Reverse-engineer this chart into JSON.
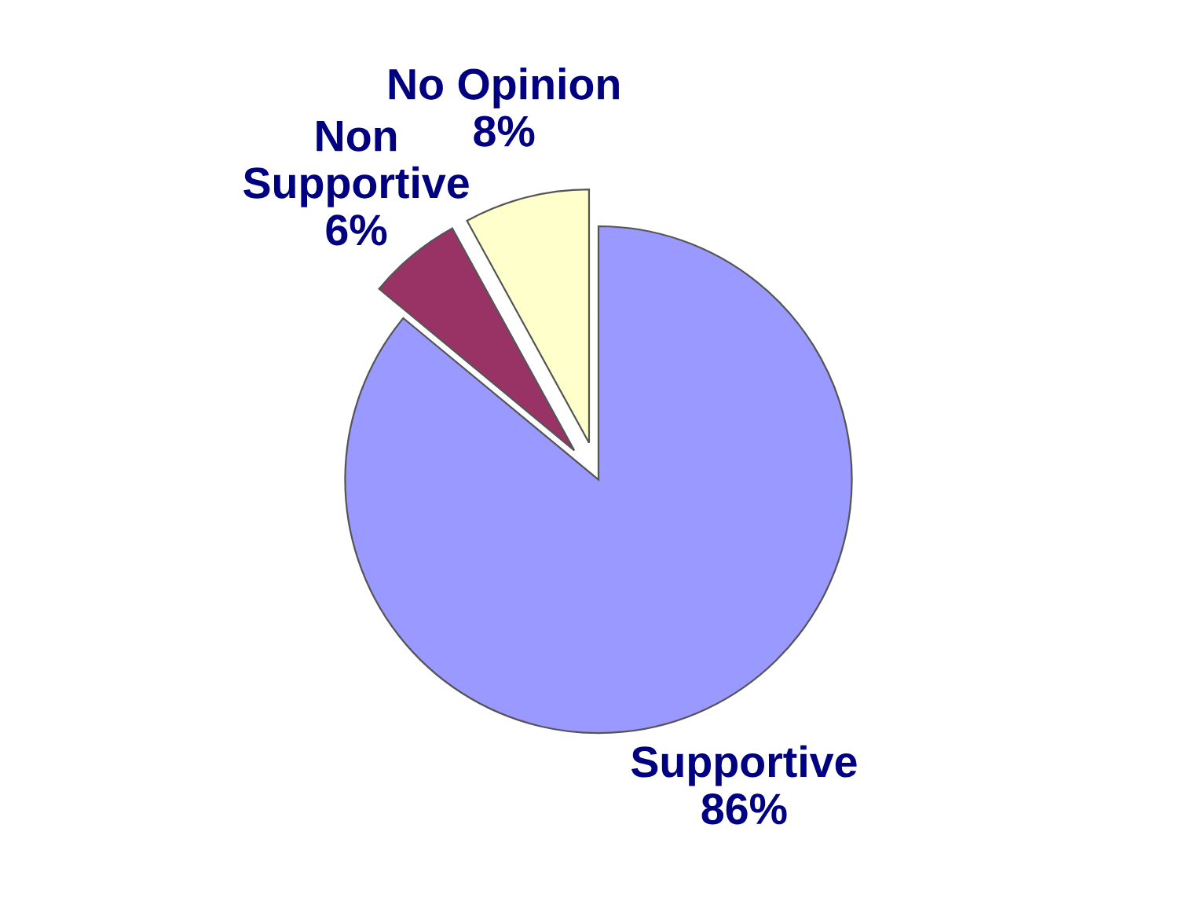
{
  "chart_data": {
    "type": "pie",
    "categories": [
      "Supportive",
      "Non Supportive",
      "No Opinion"
    ],
    "values": [
      86,
      6,
      8
    ],
    "value_labels": [
      "86%",
      "6%",
      "8%"
    ],
    "colors": [
      "#9999ff",
      "#993366",
      "#ffffcc"
    ]
  }
}
